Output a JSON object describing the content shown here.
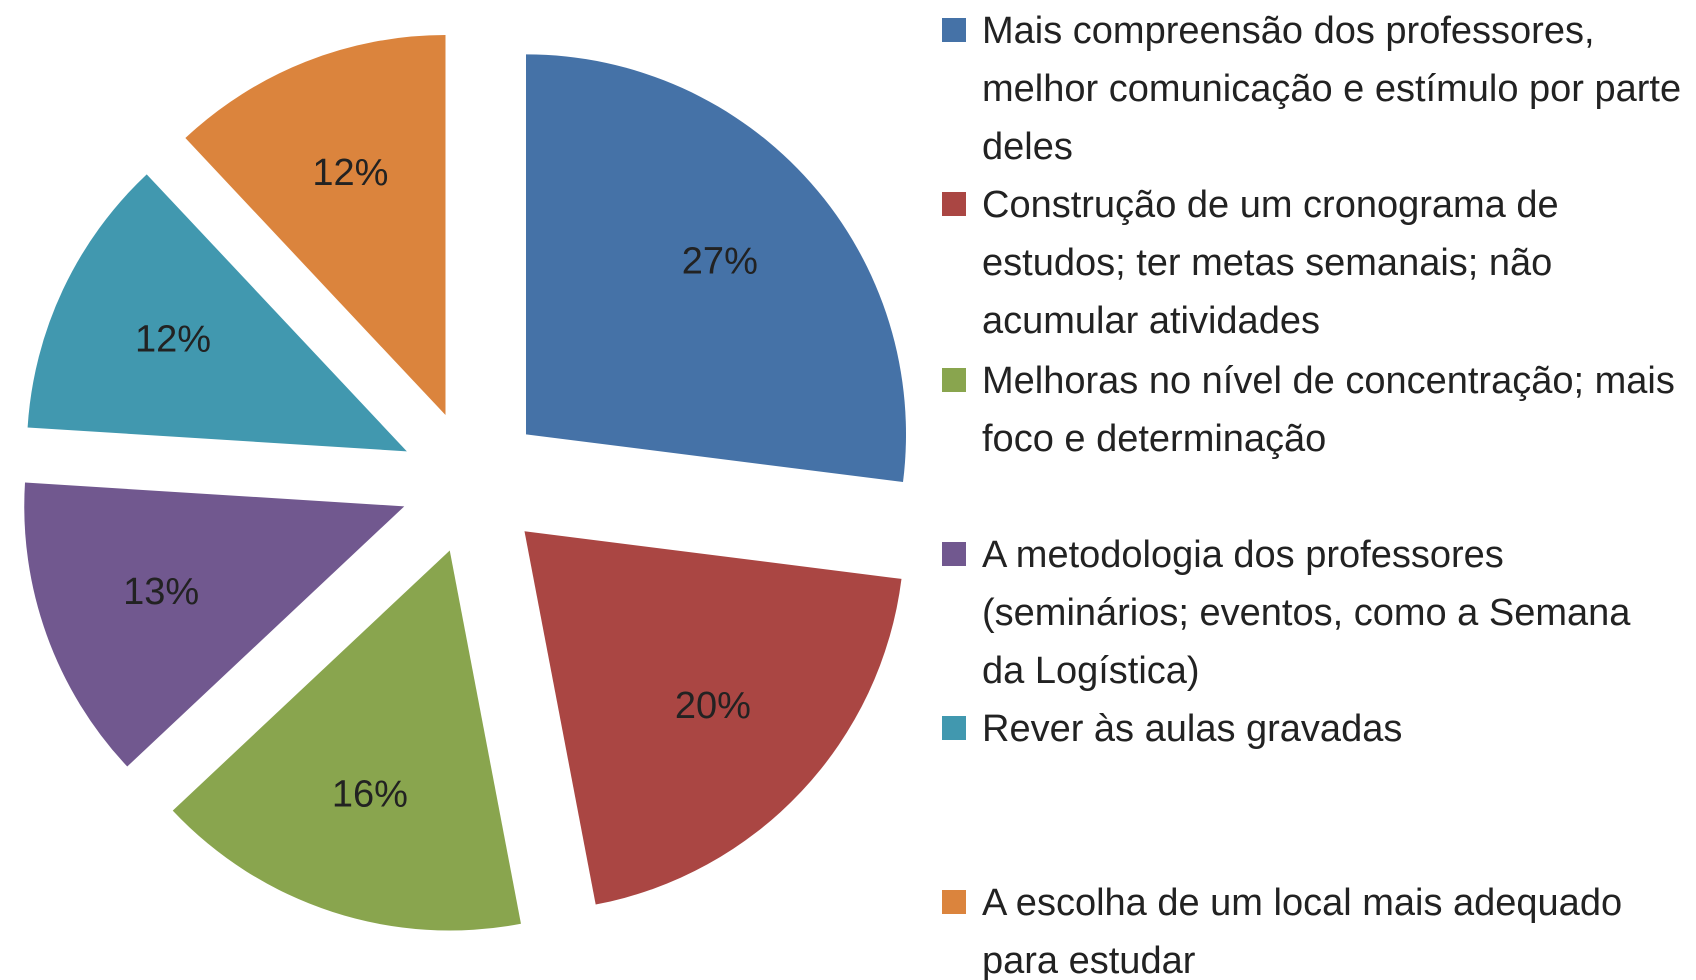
{
  "chart_data": {
    "type": "pie",
    "series": [
      {
        "name": "Mais compreensão dos professores, melhor comunicação e estímulo por parte deles",
        "color": "#4572a7"
      },
      {
        "name": "Construção de um cronograma de estudos; ter metas semanais; não acumular atividades",
        "color": "#aa4643"
      },
      {
        "name": "Melhoras no nível de concentração; mais foco e determinação",
        "color": "#89a54e"
      },
      {
        "name": "A metodologia dos professores (seminários; eventos, como a Semana da Logística)",
        "color": "#71588f"
      },
      {
        "name": "Rever às aulas gravadas",
        "color": "#4198af"
      },
      {
        "name": "A escolha de um local mais adequado para estudar",
        "color": "#db843d"
      }
    ],
    "values": [
      27,
      20,
      16,
      13,
      12,
      12
    ],
    "value_labels": [
      "27%",
      "20%",
      "16%",
      "13%",
      "12%",
      "12%"
    ]
  }
}
